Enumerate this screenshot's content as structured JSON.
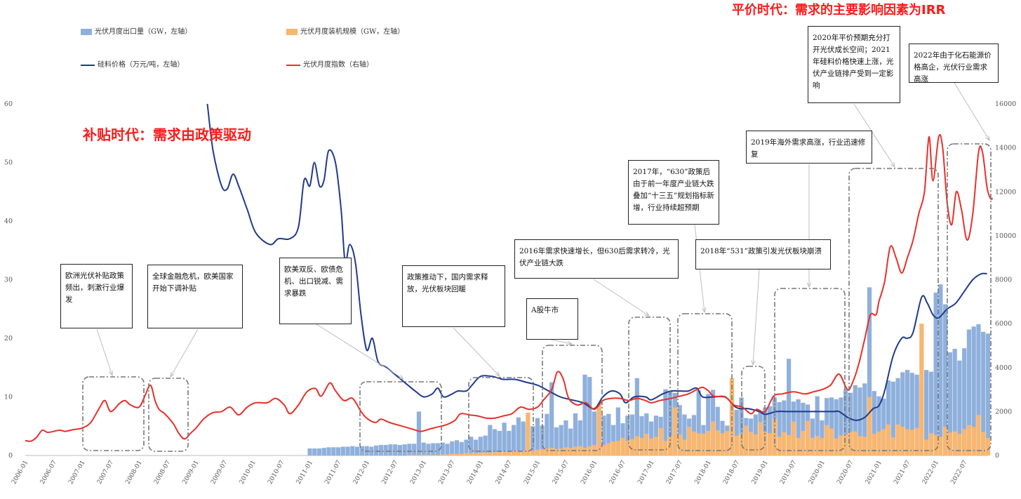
{
  "era_titles": {
    "subsidy": "补贴时代：需求由政策驱动",
    "parity": "平价时代：需求的主要影响因素为IRR"
  },
  "legend": {
    "export": "光伏月度出口量（GW，左轴）",
    "install": "光伏月度装机规模（GW，左轴）",
    "polysilicon": "硅料价格（万元/吨，左轴）",
    "index": "光伏月度指数（右轴）"
  },
  "colors": {
    "export": "#8fb0dc",
    "install": "#f9b66e",
    "polysilicon": "#1f3a8c",
    "index": "#e8302a"
  },
  "notes": [
    {
      "id": "n1",
      "text": "欧洲光伏补贴政策频出，刺激行业爆发"
    },
    {
      "id": "n2",
      "text": "全球金融危机，欧美国家开始下调补贴"
    },
    {
      "id": "n3",
      "text": "欧美双反、欧债危机、出口锐减、需求暴跌"
    },
    {
      "id": "n4",
      "text": "政策推动下，国内需求释放，光伏板块回暖"
    },
    {
      "id": "n5",
      "text": "A股牛市"
    },
    {
      "id": "n6",
      "text": "2016年需求快速增长，但630后需求转冷，光伏产业链大跌"
    },
    {
      "id": "n7",
      "text": "2017年，“630”政策后由于前一年度产业链大跌叠加“十三五”规划指标新增，行业持续超预期"
    },
    {
      "id": "n8",
      "text": "2018年“531”政策引发光伏板块崩溃"
    },
    {
      "id": "n9",
      "text": "2019年海外需求高涨，行业迅速修复"
    },
    {
      "id": "n10",
      "text": "2020年平价预期充分打开光伏成长空间；2021年硅料价格快速上涨，光伏产业链排产受到一定影响"
    },
    {
      "id": "n11",
      "text": "2022年由于化石能源价格高企，光伏行业需求高涨"
    }
  ],
  "chart_data": {
    "type": "bar",
    "left_axis": {
      "ylim": [
        0,
        60
      ],
      "ticks": [
        "0",
        "10",
        "20",
        "30",
        "40",
        "50",
        "60"
      ]
    },
    "right_axis": {
      "ylim": [
        0,
        16000
      ],
      "ticks": [
        "0",
        "2000",
        "4000",
        "6000",
        "8000",
        "10000",
        "12000",
        "14000",
        "16000"
      ]
    },
    "x_range": [
      2006.0,
      2022.917
    ],
    "x_ticks": [
      "2006-01",
      "2006-07",
      "2007-01",
      "2007-07",
      "2008-01",
      "2008-07",
      "2009-01",
      "2009-07",
      "2010-01",
      "2010-07",
      "2011-01",
      "2011-07",
      "2012-01",
      "2012-07",
      "2013-01",
      "2013-07",
      "2014-01",
      "2014-07",
      "2015-01",
      "2015-07",
      "2016-01",
      "2016-07",
      "2017-01",
      "2017-07",
      "2018-01",
      "2018-07",
      "2019-01",
      "2019-07",
      "2020-01",
      "2020-07",
      "2021-01",
      "2021-07",
      "2022-01",
      "2022-07"
    ],
    "polysilicon": {
      "name": "硅料价格（万元/吨，左轴）",
      "points": [
        [
          2009.2,
          60
        ],
        [
          2009.3,
          52
        ],
        [
          2009.45,
          46
        ],
        [
          2009.55,
          45.5
        ],
        [
          2009.65,
          48
        ],
        [
          2009.75,
          46
        ],
        [
          2009.9,
          42
        ],
        [
          2010.05,
          38
        ],
        [
          2010.3,
          36
        ],
        [
          2010.45,
          37
        ],
        [
          2010.65,
          37
        ],
        [
          2010.8,
          39
        ],
        [
          2010.9,
          47
        ],
        [
          2011.0,
          46
        ],
        [
          2011.08,
          50
        ],
        [
          2011.17,
          46
        ],
        [
          2011.25,
          47
        ],
        [
          2011.33,
          52
        ],
        [
          2011.45,
          50
        ],
        [
          2011.55,
          42
        ],
        [
          2011.62,
          33
        ],
        [
          2011.7,
          36
        ],
        [
          2011.8,
          33
        ],
        [
          2011.9,
          24
        ],
        [
          2012.0,
          18
        ],
        [
          2012.1,
          20
        ],
        [
          2012.2,
          16
        ],
        [
          2012.35,
          15
        ],
        [
          2012.6,
          13
        ],
        [
          2012.85,
          11
        ],
        [
          2013.0,
          10
        ],
        [
          2013.15,
          10.5
        ],
        [
          2013.25,
          11.5
        ],
        [
          2013.35,
          10
        ],
        [
          2013.5,
          10.5
        ],
        [
          2013.6,
          11
        ],
        [
          2013.75,
          11
        ],
        [
          2013.85,
          12
        ],
        [
          2014.0,
          13.5
        ],
        [
          2014.2,
          13.5
        ],
        [
          2014.4,
          13
        ],
        [
          2014.6,
          13
        ],
        [
          2014.8,
          12.5
        ],
        [
          2015.0,
          12
        ],
        [
          2015.2,
          11
        ],
        [
          2015.4,
          10
        ],
        [
          2015.6,
          9.5
        ],
        [
          2015.8,
          9
        ],
        [
          2016.0,
          8
        ],
        [
          2016.15,
          10
        ],
        [
          2016.3,
          11
        ],
        [
          2016.45,
          10.5
        ],
        [
          2016.55,
          9
        ],
        [
          2016.7,
          10
        ],
        [
          2016.9,
          10
        ],
        [
          2017.0,
          9.5
        ],
        [
          2017.2,
          10.5
        ],
        [
          2017.35,
          11
        ],
        [
          2017.5,
          11
        ],
        [
          2017.65,
          11
        ],
        [
          2017.8,
          11.5
        ],
        [
          2017.9,
          10
        ],
        [
          2018.1,
          10
        ],
        [
          2018.3,
          10
        ],
        [
          2018.45,
          8.5
        ],
        [
          2018.55,
          8
        ],
        [
          2018.7,
          8
        ],
        [
          2018.9,
          7.5
        ],
        [
          2019.0,
          7
        ],
        [
          2019.2,
          7.5
        ],
        [
          2019.4,
          7.5
        ],
        [
          2019.6,
          7.5
        ],
        [
          2019.9,
          7.5
        ],
        [
          2020.2,
          7.5
        ],
        [
          2020.3,
          7.5
        ],
        [
          2020.45,
          6.5
        ],
        [
          2020.6,
          6
        ],
        [
          2020.75,
          6.5
        ],
        [
          2020.9,
          8
        ],
        [
          2021.0,
          8.5
        ],
        [
          2021.1,
          11
        ],
        [
          2021.25,
          17
        ],
        [
          2021.4,
          20
        ],
        [
          2021.5,
          20
        ],
        [
          2021.6,
          21
        ],
        [
          2021.75,
          27
        ],
        [
          2021.85,
          26
        ],
        [
          2021.95,
          24
        ],
        [
          2022.05,
          23.5
        ],
        [
          2022.2,
          25
        ],
        [
          2022.35,
          26
        ],
        [
          2022.5,
          28
        ],
        [
          2022.65,
          30
        ],
        [
          2022.8,
          31
        ],
        [
          2022.9,
          31
        ]
      ]
    },
    "index": {
      "name": "光伏月度指数（右轴）",
      "points": [
        [
          2006.0,
          680
        ],
        [
          2006.1,
          650
        ],
        [
          2006.2,
          830
        ],
        [
          2006.3,
          1150
        ],
        [
          2006.4,
          1050
        ],
        [
          2006.6,
          1150
        ],
        [
          2006.7,
          1100
        ],
        [
          2006.85,
          1180
        ],
        [
          2007.0,
          1250
        ],
        [
          2007.15,
          1500
        ],
        [
          2007.3,
          2150
        ],
        [
          2007.4,
          2500
        ],
        [
          2007.5,
          2000
        ],
        [
          2007.65,
          2350
        ],
        [
          2007.75,
          2500
        ],
        [
          2007.85,
          2300
        ],
        [
          2008.0,
          2200
        ],
        [
          2008.1,
          2700
        ],
        [
          2008.2,
          3200
        ],
        [
          2008.28,
          2500
        ],
        [
          2008.35,
          2100
        ],
        [
          2008.45,
          1900
        ],
        [
          2008.6,
          1450
        ],
        [
          2008.7,
          1000
        ],
        [
          2008.8,
          750
        ],
        [
          2008.9,
          1000
        ],
        [
          2009.0,
          1250
        ],
        [
          2009.15,
          1700
        ],
        [
          2009.3,
          1950
        ],
        [
          2009.45,
          2000
        ],
        [
          2009.6,
          2200
        ],
        [
          2009.75,
          1850
        ],
        [
          2009.9,
          2200
        ],
        [
          2010.05,
          2400
        ],
        [
          2010.25,
          2400
        ],
        [
          2010.4,
          2600
        ],
        [
          2010.55,
          2300
        ],
        [
          2010.65,
          1900
        ],
        [
          2010.8,
          2300
        ],
        [
          2010.95,
          2900
        ],
        [
          2011.1,
          3050
        ],
        [
          2011.2,
          2700
        ],
        [
          2011.35,
          3300
        ],
        [
          2011.45,
          2950
        ],
        [
          2011.6,
          2500
        ],
        [
          2011.75,
          2600
        ],
        [
          2011.9,
          2000
        ],
        [
          2012.0,
          1700
        ],
        [
          2012.15,
          1500
        ],
        [
          2012.25,
          1650
        ],
        [
          2012.4,
          1500
        ],
        [
          2012.6,
          1350
        ],
        [
          2012.8,
          1200
        ],
        [
          2012.95,
          1100
        ],
        [
          2013.1,
          1200
        ],
        [
          2013.25,
          1300
        ],
        [
          2013.4,
          1400
        ],
        [
          2013.55,
          1600
        ],
        [
          2013.65,
          1900
        ],
        [
          2013.8,
          1850
        ],
        [
          2013.95,
          1800
        ],
        [
          2014.1,
          1700
        ],
        [
          2014.25,
          1700
        ],
        [
          2014.4,
          1800
        ],
        [
          2014.55,
          1900
        ],
        [
          2014.7,
          2200
        ],
        [
          2014.85,
          2100
        ],
        [
          2015.0,
          2200
        ],
        [
          2015.1,
          2500
        ],
        [
          2015.25,
          3000
        ],
        [
          2015.35,
          3800
        ],
        [
          2015.45,
          3500
        ],
        [
          2015.55,
          2600
        ],
        [
          2015.7,
          2300
        ],
        [
          2015.85,
          2400
        ],
        [
          2016.0,
          2100
        ],
        [
          2016.15,
          2500
        ],
        [
          2016.3,
          2600
        ],
        [
          2016.45,
          2600
        ],
        [
          2016.6,
          2500
        ],
        [
          2016.75,
          2600
        ],
        [
          2016.9,
          2500
        ],
        [
          2017.0,
          2400
        ],
        [
          2017.15,
          2500
        ],
        [
          2017.35,
          2600
        ],
        [
          2017.5,
          2700
        ],
        [
          2017.65,
          2800
        ],
        [
          2017.8,
          3000
        ],
        [
          2017.9,
          3100
        ],
        [
          2018.0,
          2950
        ],
        [
          2018.1,
          2700
        ],
        [
          2018.3,
          2650
        ],
        [
          2018.45,
          2300
        ],
        [
          2018.6,
          2200
        ],
        [
          2018.75,
          1900
        ],
        [
          2018.85,
          2100
        ],
        [
          2019.0,
          2000
        ],
        [
          2019.15,
          2700
        ],
        [
          2019.3,
          2800
        ],
        [
          2019.5,
          2900
        ],
        [
          2019.7,
          2800
        ],
        [
          2019.85,
          2900
        ],
        [
          2020.0,
          3000
        ],
        [
          2020.15,
          3200
        ],
        [
          2020.3,
          3700
        ],
        [
          2020.45,
          3000
        ],
        [
          2020.55,
          3400
        ],
        [
          2020.65,
          4200
        ],
        [
          2020.75,
          5300
        ],
        [
          2020.85,
          6400
        ],
        [
          2020.95,
          6400
        ],
        [
          2021.0,
          7000
        ],
        [
          2021.1,
          7900
        ],
        [
          2021.2,
          9500
        ],
        [
          2021.3,
          9000
        ],
        [
          2021.4,
          8300
        ],
        [
          2021.5,
          9000
        ],
        [
          2021.6,
          9800
        ],
        [
          2021.7,
          11000
        ],
        [
          2021.8,
          12000
        ],
        [
          2021.88,
          14500
        ],
        [
          2021.95,
          12500
        ],
        [
          2022.05,
          14500
        ],
        [
          2022.12,
          14000
        ],
        [
          2022.2,
          11500
        ],
        [
          2022.28,
          10500
        ],
        [
          2022.36,
          12000
        ],
        [
          2022.45,
          11200
        ],
        [
          2022.55,
          9800
        ],
        [
          2022.65,
          11000
        ],
        [
          2022.75,
          13800
        ],
        [
          2022.82,
          13800
        ],
        [
          2022.9,
          12200
        ],
        [
          2022.96,
          11700
        ],
        [
          2023.0,
          11700
        ]
      ]
    },
    "exports": {
      "name": "光伏月度出口量（GW，左轴）",
      "values": [
        1.2,
        1.2,
        1.2,
        1.3,
        1.4,
        1.4,
        1.4,
        1.5,
        1.5,
        1.6,
        1.5,
        1.6,
        1.6,
        1.5,
        1.7,
        1.8,
        1.8,
        1.9,
        1.9,
        1.8,
        1.9,
        2.0,
        2.0,
        7.5,
        2.2,
        2.0,
        2.1,
        2.1,
        2.2,
        2.0,
        2.4,
        2.6,
        2.3,
        2.7,
        3.2,
        2.7,
        3.2,
        3.4,
        5.2,
        4.5,
        4.2,
        5.6,
        4.2,
        5.2,
        6.5,
        5.8,
        4.8,
        5.0,
        6.4,
        5.1,
        7.1,
        12.5,
        4.8,
        5.2,
        6.0,
        4.6,
        7.2,
        6.0,
        13.8,
        13.4,
        7.5,
        7.8,
        6.8,
        7.1,
        5.2,
        8.2,
        5.5,
        6.8,
        7.0,
        13.2,
        6.7,
        7.2,
        5.8,
        6.8,
        6.6,
        11.3,
        10.9,
        10.7,
        8.6,
        7.0,
        6.3,
        6.9,
        11.1,
        5.2,
        10.5,
        11.2,
        8.3,
        5.9,
        5.1,
        7.9,
        7.8,
        9.9,
        6.4,
        6.3,
        7.0,
        7.5,
        8.2,
        8.4,
        9.9,
        9.1,
        9.4,
        16.5,
        9.2,
        9.6,
        9.0,
        8.7,
        6.3,
        10.1,
        6.0,
        9.8,
        9.9,
        9.6,
        9.9,
        11.3,
        10.7,
        12.0,
        11.6,
        12.3,
        28.7,
        11.0,
        10.1,
        9.7,
        12.8,
        12.6,
        13.2,
        14.2,
        14.6,
        14.1,
        13.8,
        13.2,
        14.6,
        14.3,
        27.8,
        29.2,
        25.8,
        17.6,
        18.2,
        16.2,
        18.3,
        21.5,
        22.0,
        22.4,
        21.1,
        20.8,
        17.6
      ],
      "start": 2011.0
    },
    "installs": {
      "name": "光伏月度装机规模（GW，左轴）",
      "values": [
        0.1,
        0.1,
        0.1,
        0.1,
        0.1,
        0.1,
        0.1,
        0.2,
        0.2,
        0.3,
        0.3,
        0.3,
        0.4,
        0.4,
        0.4,
        0.5,
        0.5,
        0.5,
        0.6,
        0.6,
        0.7,
        0.7,
        0.8,
        0.8,
        0.8,
        7.3,
        0.8,
        1.0,
        1.1,
        1.2,
        1.3,
        1.1,
        1.2,
        1.4,
        1.3,
        1.5,
        1.6,
        1.3,
        1.6,
        1.8,
        8.8,
        1.8,
        2.1,
        2.4,
        2.5,
        3.0,
        2.5,
        2.8,
        3.3,
        3.0,
        3.7,
        2.9,
        3.2,
        4.7,
        2.5,
        3.3,
        8.2,
        3.6,
        2.7,
        4.9,
        4.1,
        3.8,
        3.7,
        4.2,
        5.8,
        4.3,
        3.8,
        4.2,
        13.2,
        3.4,
        3.8,
        5.1,
        4.0,
        3.6,
        5.7,
        4.0,
        3.8,
        6.3,
        3.2,
        4.0,
        3.5,
        5.8,
        3.0,
        4.2,
        5.9,
        3.0,
        3.3,
        3.0,
        5.2,
        4.6,
        2.9,
        3.4,
        3.6,
        4.0,
        4.1,
        3.3,
        3.2,
        10.0,
        3.7,
        4.1,
        4.5,
        5.3,
        3.1,
        5.3,
        4.9,
        4.5,
        4.4,
        4.7,
        22.5,
        2.7,
        3.8,
        3.5,
        3.2,
        4.9,
        3.9,
        4.1,
        3.7,
        4.5,
        5.2,
        4.9,
        6.9,
        4.0,
        3.0,
        4.2,
        8.1,
        3.8,
        6.6,
        7.1,
        6.9,
        7.2,
        6.9,
        5.6,
        6.6,
        7.8,
        8.1
      ],
      "start": 2012.75
    }
  }
}
